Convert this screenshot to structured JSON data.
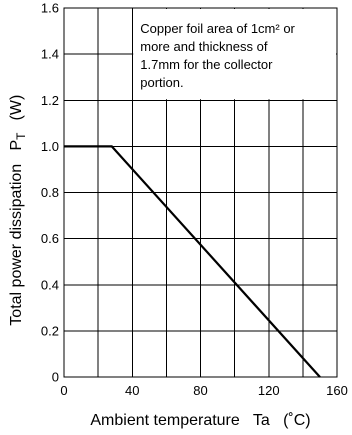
{
  "chart_data": {
    "type": "line",
    "title": "",
    "xlabel": "Ambient temperature   Ta   (˚C)",
    "ylabel": "Total power dissipation   P",
    "ylabel_subscript": "T",
    "ylabel_unit": "(W)",
    "xlim": [
      0,
      160
    ],
    "ylim": [
      0,
      1.6
    ],
    "x_ticks": [
      "0",
      "40",
      "80",
      "120",
      "160"
    ],
    "y_ticks": [
      "0",
      "0.2",
      "0.4",
      "0.6",
      "0.8",
      "1.0",
      "1.2",
      "1.4",
      "1.6"
    ],
    "grid": true,
    "series": [
      {
        "x": [
          0,
          28,
          150
        ],
        "y": [
          1.0,
          1.0,
          0
        ]
      }
    ],
    "annotation": {
      "lines": [
        "Copper foil area of 1cm² or",
        "more and thickness of",
        "1.7mm for the collector",
        "portion."
      ]
    }
  }
}
